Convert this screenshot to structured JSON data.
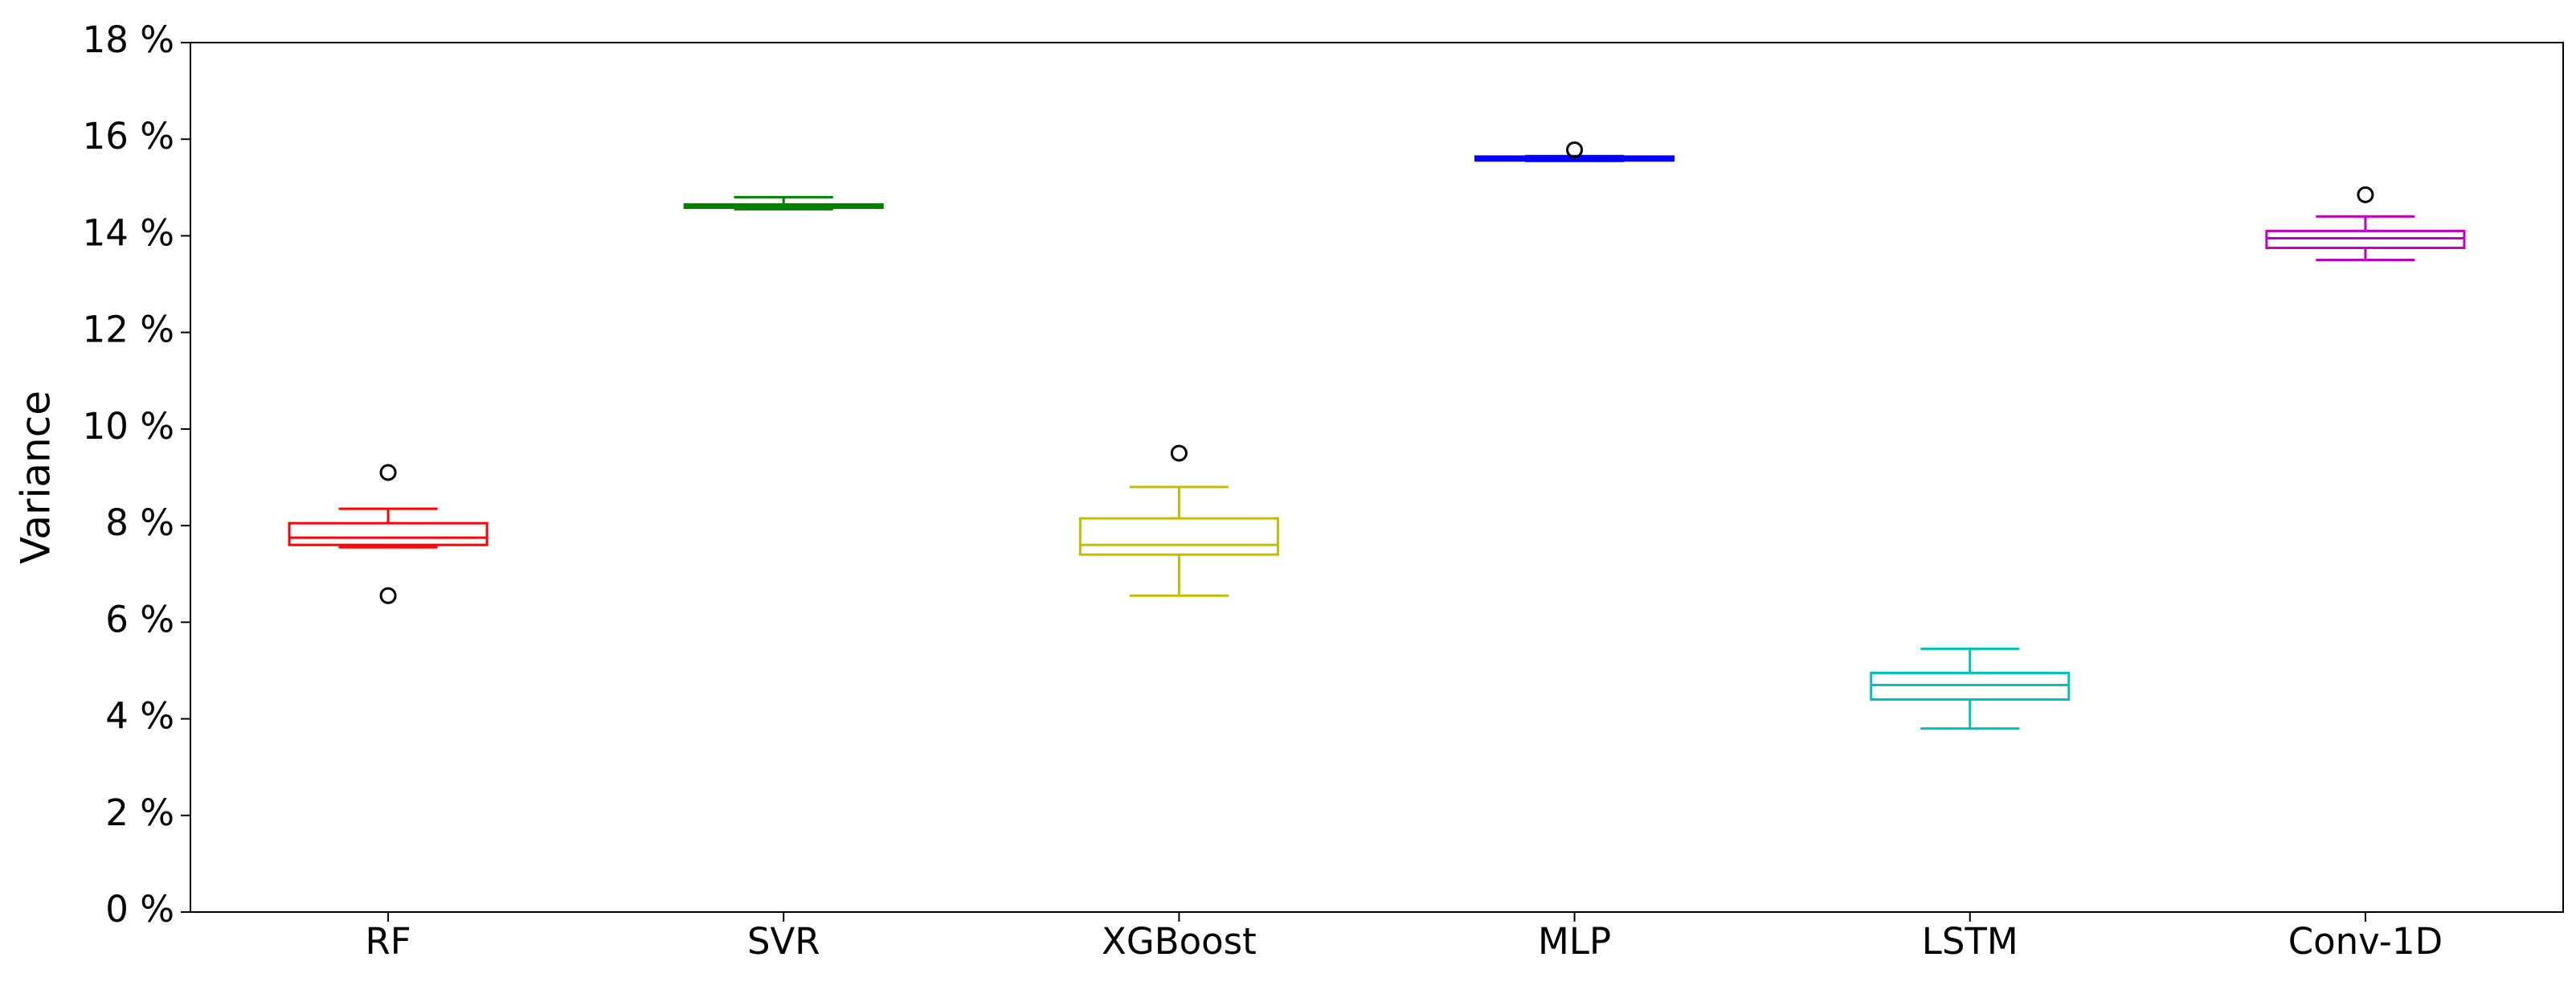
{
  "chart_data": {
    "type": "box",
    "ylabel": "Variance",
    "categories": [
      "RF",
      "SVR",
      "XGBoost",
      "MLP",
      "LSTM",
      "Conv-1D"
    ],
    "colors": [
      "#ff0000",
      "#008000",
      "#bfbf00",
      "#0000ff",
      "#00bfbf",
      "#bf00bf"
    ],
    "boxes": [
      {
        "whislo": 7.55,
        "q1": 7.6,
        "med": 7.75,
        "q3": 8.05,
        "whishi": 8.35,
        "fliers": [
          9.1,
          6.55
        ]
      },
      {
        "whislo": 14.55,
        "q1": 14.58,
        "med": 14.62,
        "q3": 14.65,
        "whishi": 14.8,
        "fliers": []
      },
      {
        "whislo": 6.55,
        "q1": 7.4,
        "med": 7.6,
        "q3": 8.15,
        "whishi": 8.8,
        "fliers": [
          9.5
        ]
      },
      {
        "whislo": 15.55,
        "q1": 15.56,
        "med": 15.6,
        "q3": 15.64,
        "whishi": 15.65,
        "fliers": [
          15.78
        ]
      },
      {
        "whislo": 3.8,
        "q1": 4.4,
        "med": 4.7,
        "q3": 4.95,
        "whishi": 5.45,
        "fliers": []
      },
      {
        "whislo": 13.5,
        "q1": 13.75,
        "med": 13.95,
        "q3": 14.1,
        "whishi": 14.4,
        "fliers": [
          14.85
        ]
      }
    ],
    "ylim": [
      0,
      18
    ],
    "yticks": [
      {
        "value": 0,
        "label": "0 %"
      },
      {
        "value": 2,
        "label": "2 %"
      },
      {
        "value": 4,
        "label": "4 %"
      },
      {
        "value": 6,
        "label": "6 %"
      },
      {
        "value": 8,
        "label": "8 %"
      },
      {
        "value": 10,
        "label": "10 %"
      },
      {
        "value": 12,
        "label": "12 %"
      },
      {
        "value": 14,
        "label": "14 %"
      },
      {
        "value": 16,
        "label": "16 %"
      },
      {
        "value": 18,
        "label": "18 %"
      }
    ]
  }
}
